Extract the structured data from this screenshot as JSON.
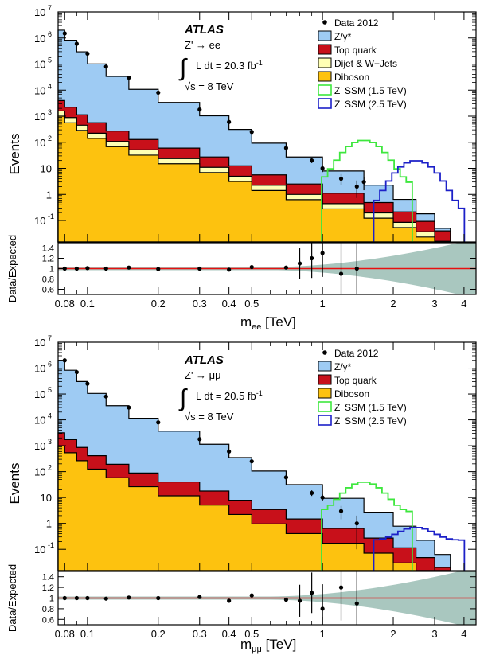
{
  "colors": {
    "zgamma": "#9ecbf3",
    "top": "#c8101a",
    "dijet": "#ffffb4",
    "diboson": "#fdc20f",
    "ssm15": "#3ee73e",
    "ssm25": "#1c20c8",
    "ratio_band": "#a9c7bf",
    "ratio_line": "#e81010",
    "outline": "#000000"
  },
  "chart_data": [
    {
      "type": "area",
      "panel": "electron channel",
      "atlas_label": "ATLAS",
      "channel_label": "Z' → ee",
      "lumi_text": "L dt = 20.3 fb",
      "lumi_sup": "-1",
      "energy_label": "√s = 8 TeV",
      "ylabel": "Events",
      "ratio_ylabel": "Data/Expected",
      "xlabel_main": "m",
      "xlabel_sub": "ee",
      "xlabel_unit": "[TeV]",
      "x_scale": "log",
      "y_scale": "log",
      "xlim": [
        0.075,
        4.5
      ],
      "ylim": [
        0.015,
        10000000
      ],
      "ratio_ylim": [
        0.5,
        1.5
      ],
      "grid": false,
      "legend_position": "top-right",
      "y_tick_labels": [
        "10^-1",
        "1",
        "10",
        "10^2",
        "10^3",
        "10^4",
        "10^5",
        "10^6",
        "10^7"
      ],
      "ratio_tick_labels": [
        "0.6",
        "0.8",
        "1",
        "1.2",
        "1.4"
      ],
      "x_tick_labels": [
        "0.08",
        "0.1",
        "0.2",
        "0.3",
        "0.4",
        "0.5",
        "1",
        "2",
        "3",
        "4"
      ],
      "legend": [
        {
          "label": "Data 2012",
          "style": "marker"
        },
        {
          "label": "Z/γ*",
          "style": "fill",
          "color": "zgamma"
        },
        {
          "label": "Top quark",
          "style": "fill",
          "color": "top"
        },
        {
          "label": "Dijet & W+Jets",
          "style": "fill",
          "color": "dijet"
        },
        {
          "label": "Diboson",
          "style": "fill",
          "color": "diboson"
        },
        {
          "label": "Z' SSM (1.5 TeV)",
          "style": "line",
          "color": "ssm15"
        },
        {
          "label": "Z' SSM (2.5 TeV)",
          "style": "line",
          "color": "ssm25"
        }
      ],
      "stack_edges_tev": [
        0.075,
        0.08,
        0.09,
        0.1,
        0.12,
        0.15,
        0.2,
        0.3,
        0.4,
        0.5,
        0.7,
        1.0,
        1.5,
        2.0,
        2.5,
        3.0,
        3.5
      ],
      "stacks": [
        {
          "name": "Diboson",
          "color": "diboson",
          "log10_start": 3.0,
          "log10_end": -2.0
        },
        {
          "name": "Dijet & W+Jets",
          "color": "dijet",
          "log10_start": 3.2,
          "log10_end": -1.8
        },
        {
          "name": "Top quark",
          "color": "top",
          "log10_start": 3.6,
          "log10_end": -1.4
        },
        {
          "name": "Z/γ*",
          "color": "zgamma",
          "log10_start": 6.3,
          "log10_end": -1.3
        }
      ],
      "signals": [
        {
          "name": "Z' SSM (1.5 TeV)",
          "color": "ssm15",
          "peak_tev": 1.5,
          "peak_events": 120
        },
        {
          "name": "Z' SSM (2.5 TeV)",
          "color": "ssm25",
          "peak_tev": 2.5,
          "peak_events": 20
        }
      ],
      "data_points": [
        [
          0.08,
          1500000
        ],
        [
          0.09,
          600000
        ],
        [
          0.1,
          250000
        ],
        [
          0.12,
          80000
        ],
        [
          0.15,
          30000
        ],
        [
          0.2,
          8000
        ],
        [
          0.3,
          1800
        ],
        [
          0.4,
          600
        ],
        [
          0.5,
          250
        ],
        [
          0.7,
          60
        ],
        [
          0.9,
          20
        ],
        [
          1.0,
          10
        ],
        [
          1.2,
          4
        ],
        [
          1.4,
          2
        ],
        [
          1.5,
          3
        ]
      ],
      "ratio_points": [
        [
          0.08,
          1.0
        ],
        [
          0.09,
          1.0
        ],
        [
          0.1,
          1.01
        ],
        [
          0.12,
          1.0
        ],
        [
          0.15,
          1.02
        ],
        [
          0.2,
          0.99
        ],
        [
          0.3,
          1.0
        ],
        [
          0.4,
          0.98
        ],
        [
          0.5,
          1.03
        ],
        [
          0.7,
          1.02
        ],
        [
          0.8,
          1.1
        ],
        [
          0.9,
          1.2
        ],
        [
          1.0,
          1.3
        ],
        [
          1.2,
          0.9
        ],
        [
          1.4,
          1.0
        ]
      ]
    },
    {
      "type": "area",
      "panel": "muon channel",
      "atlas_label": "ATLAS",
      "channel_label": "Z' → μμ",
      "lumi_text": "L dt = 20.5 fb",
      "lumi_sup": "-1",
      "energy_label": "√s = 8 TeV",
      "ylabel": "Events",
      "ratio_ylabel": "Data/Expected",
      "xlabel_main": "m",
      "xlabel_sub": "μμ",
      "xlabel_unit": "[TeV]",
      "x_scale": "log",
      "y_scale": "log",
      "xlim": [
        0.075,
        4.5
      ],
      "ylim": [
        0.015,
        10000000
      ],
      "ratio_ylim": [
        0.5,
        1.5
      ],
      "grid": false,
      "legend_position": "top-right",
      "y_tick_labels": [
        "10^-1",
        "1",
        "10",
        "10^2",
        "10^3",
        "10^4",
        "10^5",
        "10^6",
        "10^7"
      ],
      "ratio_tick_labels": [
        "0.6",
        "0.8",
        "1",
        "1.2",
        "1.4"
      ],
      "x_tick_labels": [
        "0.08",
        "0.1",
        "0.2",
        "0.3",
        "0.4",
        "0.5",
        "1",
        "2",
        "3",
        "4"
      ],
      "legend": [
        {
          "label": "Data 2012",
          "style": "marker"
        },
        {
          "label": "Z/γ*",
          "style": "fill",
          "color": "zgamma"
        },
        {
          "label": "Top quark",
          "style": "fill",
          "color": "top"
        },
        {
          "label": "Diboson",
          "style": "fill",
          "color": "diboson"
        },
        {
          "label": "Z' SSM (1.5 TeV)",
          "style": "line",
          "color": "ssm15"
        },
        {
          "label": "Z' SSM (2.5 TeV)",
          "style": "line",
          "color": "ssm25"
        }
      ],
      "stack_edges_tev": [
        0.075,
        0.08,
        0.09,
        0.1,
        0.12,
        0.15,
        0.2,
        0.3,
        0.4,
        0.5,
        0.7,
        1.0,
        1.5,
        2.0,
        2.5,
        3.0,
        3.5
      ],
      "stacks": [
        {
          "name": "Diboson",
          "color": "diboson",
          "log10_start": 3.0,
          "log10_end": -2.3
        },
        {
          "name": "Top quark",
          "color": "top",
          "log10_start": 3.5,
          "log10_end": -1.7
        },
        {
          "name": "Z/γ*",
          "color": "zgamma",
          "log10_start": 6.3,
          "log10_end": -1.2
        }
      ],
      "signals": [
        {
          "name": "Z' SSM (1.5 TeV)",
          "color": "ssm15",
          "peak_tev": 1.5,
          "peak_events": 40
        },
        {
          "name": "Z' SSM (2.5 TeV)",
          "color": "ssm25",
          "peak_tev": 2.5,
          "peak_events": 0.7
        }
      ],
      "data_points": [
        [
          0.08,
          2000000
        ],
        [
          0.09,
          700000
        ],
        [
          0.1,
          250000
        ],
        [
          0.12,
          80000
        ],
        [
          0.15,
          30000
        ],
        [
          0.2,
          8000
        ],
        [
          0.3,
          1800
        ],
        [
          0.4,
          600
        ],
        [
          0.5,
          250
        ],
        [
          0.7,
          60
        ],
        [
          0.9,
          15
        ],
        [
          1.0,
          10
        ],
        [
          1.2,
          3
        ],
        [
          1.4,
          1
        ]
      ],
      "ratio_points": [
        [
          0.08,
          1.0
        ],
        [
          0.09,
          1.0
        ],
        [
          0.1,
          1.0
        ],
        [
          0.12,
          0.99
        ],
        [
          0.15,
          1.01
        ],
        [
          0.2,
          1.0
        ],
        [
          0.3,
          1.02
        ],
        [
          0.4,
          0.95
        ],
        [
          0.5,
          1.05
        ],
        [
          0.7,
          0.97
        ],
        [
          0.8,
          0.95
        ],
        [
          0.9,
          1.1
        ],
        [
          1.0,
          0.8
        ],
        [
          1.2,
          1.2
        ],
        [
          1.4,
          0.9
        ]
      ]
    }
  ]
}
